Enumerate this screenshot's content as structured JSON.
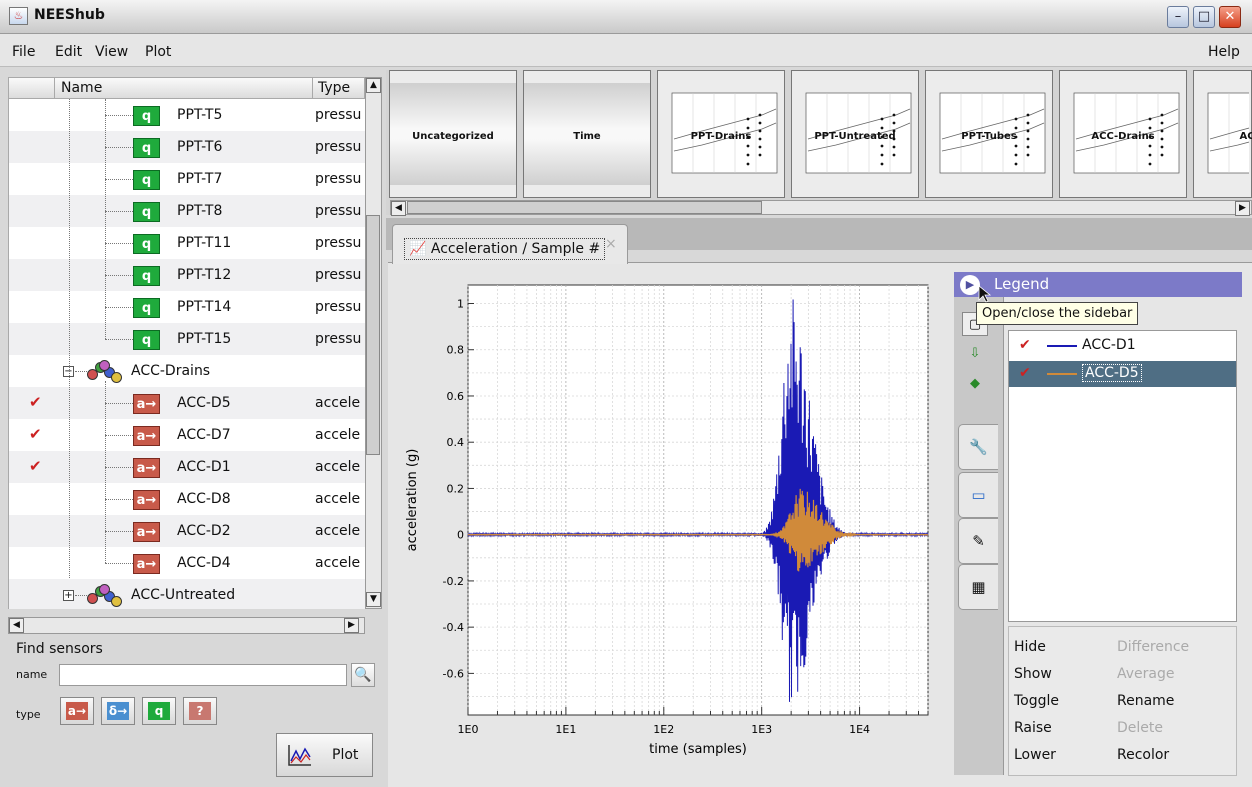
{
  "window": {
    "title": "NEEShub"
  },
  "menu": {
    "items": [
      "File",
      "Edit",
      "View",
      "Plot"
    ],
    "help": "Help"
  },
  "tree": {
    "columns": {
      "name": "Name",
      "type": "Type"
    },
    "rows": [
      {
        "label": "PPT-T5",
        "type": "pressu",
        "badge": "q",
        "checked": false
      },
      {
        "label": "PPT-T6",
        "type": "pressu",
        "badge": "q",
        "checked": false
      },
      {
        "label": "PPT-T7",
        "type": "pressu",
        "badge": "q",
        "checked": false
      },
      {
        "label": "PPT-T8",
        "type": "pressu",
        "badge": "q",
        "checked": false
      },
      {
        "label": "PPT-T11",
        "type": "pressu",
        "badge": "q",
        "checked": false
      },
      {
        "label": "PPT-T12",
        "type": "pressu",
        "badge": "q",
        "checked": false
      },
      {
        "label": "PPT-T14",
        "type": "pressu",
        "badge": "q",
        "checked": false
      },
      {
        "label": "PPT-T15",
        "type": "pressu",
        "badge": "q",
        "checked": false
      }
    ],
    "group_drains": {
      "label": "ACC-Drains",
      "expander": "⊟"
    },
    "drain_rows": [
      {
        "label": "ACC-D5",
        "type": "accele",
        "badge": "a",
        "checked": true
      },
      {
        "label": "ACC-D7",
        "type": "accele",
        "badge": "a",
        "checked": true
      },
      {
        "label": "ACC-D1",
        "type": "accele",
        "badge": "a",
        "checked": true
      },
      {
        "label": "ACC-D8",
        "type": "accele",
        "badge": "a",
        "checked": false
      },
      {
        "label": "ACC-D2",
        "type": "accele",
        "badge": "a",
        "checked": false
      },
      {
        "label": "ACC-D4",
        "type": "accele",
        "badge": "a",
        "checked": false
      }
    ],
    "group_untreated": {
      "label": "ACC-Untreated",
      "expander": "⊞"
    },
    "badge_q": "q",
    "badge_a": "a→",
    "check_mark": "✔"
  },
  "find": {
    "title": "Find sensors",
    "name_label": "name",
    "name_value": "",
    "type_label": "type",
    "type_buttons": [
      {
        "text": "a→",
        "color": "#c85a4a"
      },
      {
        "text": "δ→",
        "color": "#4a8fd0"
      },
      {
        "text": "q",
        "color": "#1faa3c"
      },
      {
        "text": "?",
        "color": "#c87870"
      }
    ],
    "plot_label": "Plot"
  },
  "categories": [
    "Uncategorized",
    "Time",
    "PPT-Drains",
    "PPT-Untreated",
    "PPT-Tubes",
    "ACC-Drains",
    "ACC-U"
  ],
  "plot_tab": {
    "label": "Acceleration / Sample #",
    "close": "×"
  },
  "chart_data": {
    "type": "line",
    "xlabel": "time (samples)",
    "ylabel": "acceleration (g)",
    "x_scale": "log",
    "x_ticks": [
      "1E0",
      "1E1",
      "1E2",
      "1E3",
      "1E4"
    ],
    "y_ticks": [
      "1",
      "0.8",
      "0.6",
      "0.4",
      "0.2",
      "0",
      "-0.2",
      "-0.4",
      "-0.6"
    ],
    "xlim": [
      1,
      50000
    ],
    "ylim": [
      -0.78,
      1.08
    ],
    "grid": true,
    "series": [
      {
        "name": "ACC-D1",
        "color": "#1a1ab4",
        "peak_max": 1.04,
        "peak_min": -0.76,
        "peak_at": 2000
      },
      {
        "name": "ACC-D5",
        "color": "#d08a3a",
        "peak_max": 0.2,
        "peak_min": -0.17,
        "peak_at": 2500
      }
    ]
  },
  "legend": {
    "title": "Legend",
    "tooltip": "Open/close the sidebar",
    "items": [
      {
        "name": "ACC-D1",
        "color": "#1a1ab4",
        "checked": true,
        "selected": false
      },
      {
        "name": "ACC-D5",
        "color": "#d08a3a",
        "checked": true,
        "selected": true
      }
    ],
    "actions_left": [
      "Hide",
      "Show",
      "Toggle",
      "Raise",
      "Lower"
    ],
    "actions_right": [
      "Difference",
      "Average",
      "Rename",
      "Delete",
      "Recolor"
    ],
    "actions_right_disabled": [
      true,
      true,
      false,
      true,
      false
    ]
  }
}
